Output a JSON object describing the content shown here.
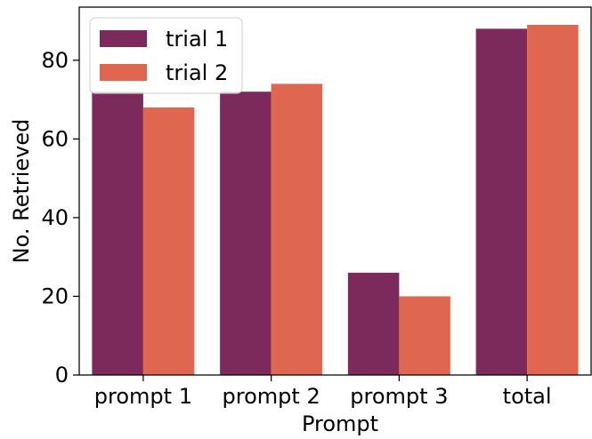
{
  "chart_data": {
    "type": "bar",
    "categories": [
      "prompt 1",
      "prompt 2",
      "prompt 3",
      "total"
    ],
    "series": [
      {
        "name": "trial 1",
        "values": [
          72,
          72,
          26,
          88
        ],
        "color": "#7b2a5b"
      },
      {
        "name": "trial 2",
        "values": [
          68,
          74,
          20,
          89
        ],
        "color": "#e0674f"
      }
    ],
    "xlabel": "Prompt",
    "ylabel": "No. Retrieved",
    "ylim": [
      0,
      93.5
    ],
    "yticks": [
      0,
      20,
      40,
      60,
      80
    ],
    "grid": false,
    "legend_position": "top-left"
  }
}
